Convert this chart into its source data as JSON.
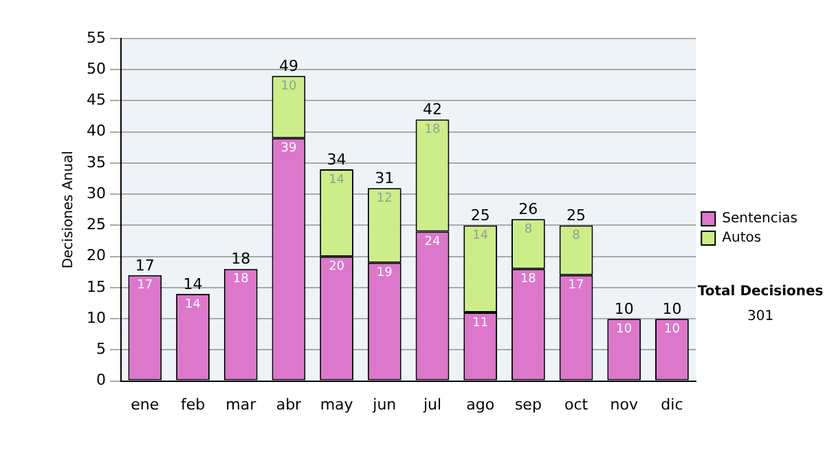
{
  "chart_data": {
    "type": "bar",
    "stacked": true,
    "ylabel": "Decisiones Anual",
    "categories": [
      "ene",
      "feb",
      "mar",
      "abr",
      "may",
      "jun",
      "jul",
      "ago",
      "sep",
      "oct",
      "nov",
      "dic"
    ],
    "series": [
      {
        "name": "Sentencias",
        "color": "#dd77cc",
        "values": [
          17,
          14,
          18,
          39,
          20,
          19,
          24,
          11,
          18,
          17,
          10,
          10
        ],
        "value_labels": [
          "17",
          "14",
          "18",
          "39",
          "20",
          "19",
          "24",
          "11",
          "18",
          "17",
          "10",
          "10"
        ]
      },
      {
        "name": "Autos",
        "color": "#ccee88",
        "values": [
          0,
          0,
          0,
          10,
          14,
          12,
          18,
          14,
          8,
          8,
          0,
          0
        ],
        "value_labels": [
          null,
          null,
          null,
          "10",
          "14",
          "12",
          "18",
          "14",
          "8",
          "8",
          null,
          null
        ]
      }
    ],
    "totals": [
      "17",
      "14",
      "18",
      "49",
      "34",
      "31",
      "42",
      "25",
      "26",
      "25",
      "10",
      "10"
    ],
    "ylim": [
      0,
      55
    ],
    "yticks": [
      0,
      5,
      10,
      15,
      20,
      25,
      30,
      35,
      40,
      45,
      50,
      55
    ],
    "grid": "y",
    "legend": "right",
    "annotations": [
      "Total Decisiones",
      "301"
    ]
  }
}
